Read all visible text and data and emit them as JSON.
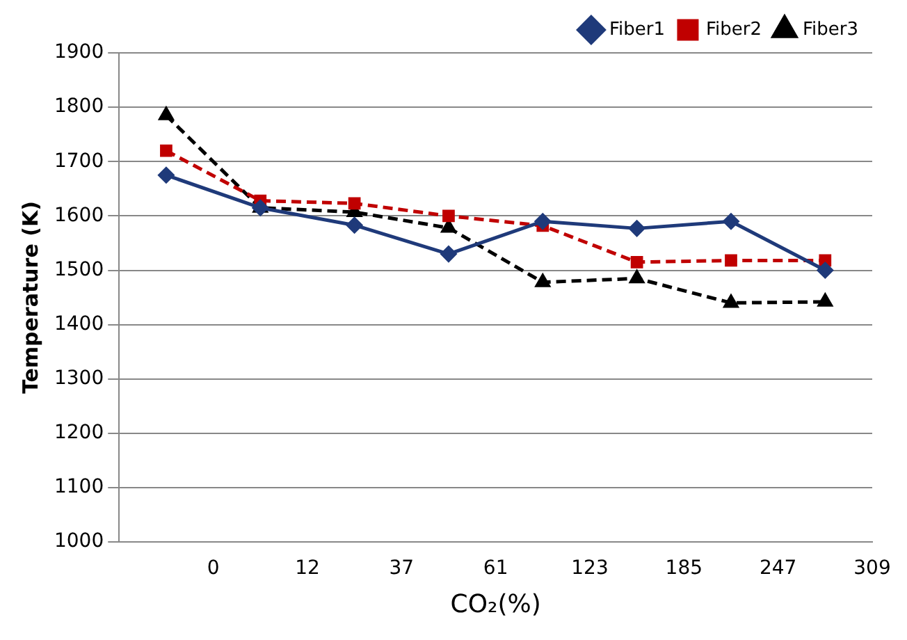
{
  "chart_data": {
    "type": "line",
    "xlabel": "CO₂(%)",
    "ylabel": "Temperature (K)",
    "categories": [
      null,
      null,
      "0",
      null,
      "12",
      null,
      "37",
      null,
      "61",
      null,
      "123",
      null,
      "185",
      null,
      "247",
      null,
      "309"
    ],
    "ylim": [
      1000,
      1900
    ],
    "yticks": [
      1000,
      1100,
      1200,
      1300,
      1400,
      1500,
      1600,
      1700,
      1800,
      1900
    ],
    "grid": "y",
    "legend": "top right",
    "series": [
      {
        "name": "Fiber1",
        "color": "#1f3a7a",
        "marker": "diamond",
        "line_style": "solid",
        "values": [
          null,
          1675,
          null,
          1615,
          null,
          1583,
          null,
          1530,
          null,
          1590,
          null,
          1577,
          null,
          1590,
          null,
          1500,
          null
        ]
      },
      {
        "name": "Fiber2",
        "color": "#c00000",
        "marker": "square",
        "line_style": "dashed",
        "values": [
          null,
          1720,
          null,
          1628,
          null,
          1623,
          null,
          1600,
          null,
          1582,
          null,
          1515,
          null,
          1518,
          null,
          1518,
          null
        ]
      },
      {
        "name": "Fiber3",
        "color": "#000000",
        "marker": "triangle",
        "line_style": "dashed",
        "values": [
          null,
          1785,
          null,
          1615,
          null,
          1607,
          null,
          1578,
          null,
          1478,
          null,
          1485,
          null,
          1440,
          null,
          1442,
          null
        ]
      }
    ]
  }
}
